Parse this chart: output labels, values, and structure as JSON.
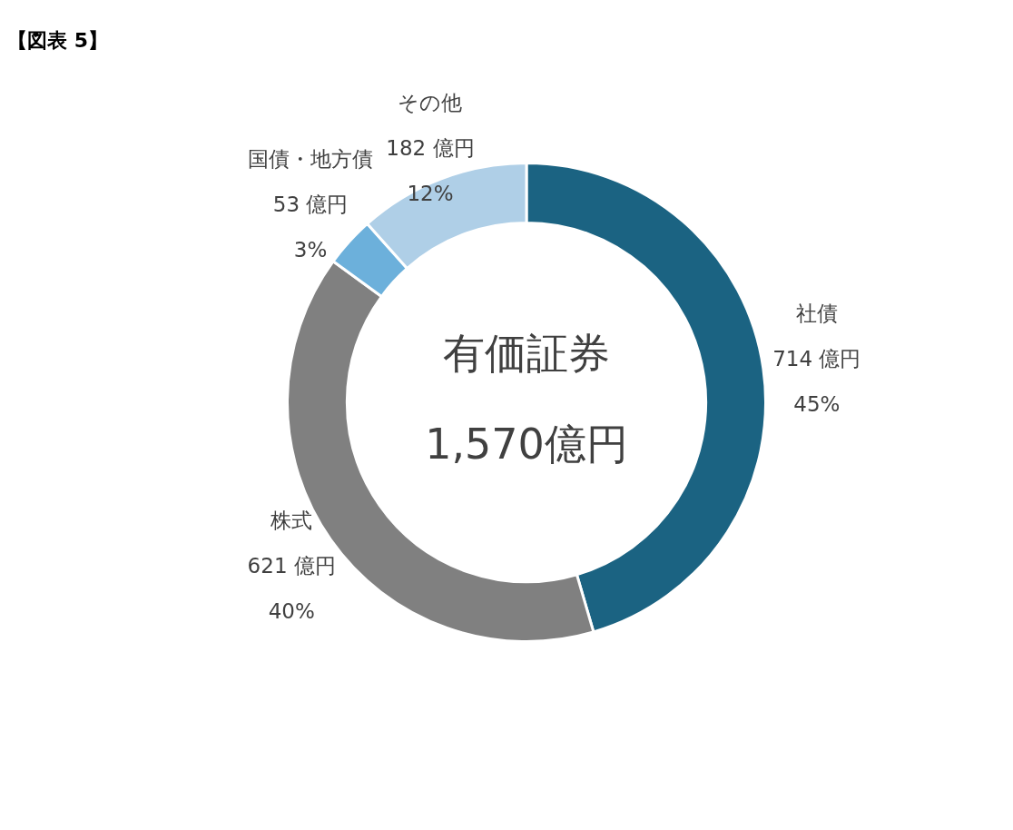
{
  "chart_data": {
    "type": "donut",
    "title": "【図表 5】",
    "categories": [
      "社債",
      "株式",
      "国債・地方債",
      "その他"
    ],
    "values": [
      714,
      621,
      53,
      182
    ],
    "colors": [
      "#1b6382",
      "#808080",
      "#6cb0db",
      "#afcfe7"
    ],
    "value_labels": [
      "714 億円\n45%",
      "621 億円\n40%",
      "53 億円\n3%",
      "182 億円\n12%"
    ],
    "annotations": [
      "有価証券",
      "1,570億円"
    ],
    "legend": false
  }
}
